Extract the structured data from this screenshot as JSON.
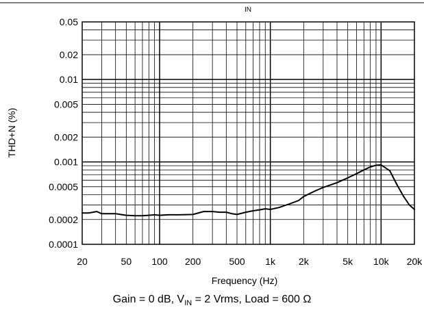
{
  "chart_data": {
    "type": "line",
    "top_label": "IN",
    "xlabel": "Frequency (Hz)",
    "ylabel": "THD+N (%)",
    "x_scale": "log",
    "y_scale": "log",
    "xlim": [
      20,
      20000
    ],
    "ylim": [
      0.0001,
      0.05
    ],
    "grid": true,
    "x_ticks": [
      {
        "value": 20,
        "label": "20"
      },
      {
        "value": 50,
        "label": "50"
      },
      {
        "value": 100,
        "label": "100"
      },
      {
        "value": 200,
        "label": "200"
      },
      {
        "value": 500,
        "label": "500"
      },
      {
        "value": 1000,
        "label": "1k"
      },
      {
        "value": 2000,
        "label": "2k"
      },
      {
        "value": 5000,
        "label": "5k"
      },
      {
        "value": 10000,
        "label": "10k"
      },
      {
        "value": 20000,
        "label": "20k"
      }
    ],
    "y_ticks": [
      {
        "value": 0.05,
        "label": "0.05"
      },
      {
        "value": 0.02,
        "label": "0.02"
      },
      {
        "value": 0.01,
        "label": "0.01"
      },
      {
        "value": 0.005,
        "label": "0.005"
      },
      {
        "value": 0.002,
        "label": "0.002"
      },
      {
        "value": 0.001,
        "label": "0.001"
      },
      {
        "value": 0.0005,
        "label": "0.0005"
      },
      {
        "value": 0.0002,
        "label": "0.0002"
      },
      {
        "value": 0.0001,
        "label": "0.0001"
      }
    ],
    "series": [
      {
        "x": [
          20,
          23,
          25,
          27,
          30,
          35,
          40,
          50,
          60,
          70,
          80,
          90,
          100,
          120,
          150,
          200,
          250,
          300,
          350,
          400,
          450,
          500,
          600,
          700,
          800,
          900,
          1000,
          1200,
          1500,
          1800,
          2000,
          2500,
          3000,
          4000,
          5000,
          6000,
          7000,
          8000,
          9000,
          10000,
          12000,
          14000,
          16000,
          18000,
          20000
        ],
        "y": [
          0.00024,
          0.00024,
          0.000245,
          0.00025,
          0.000235,
          0.000235,
          0.000235,
          0.000225,
          0.000222,
          0.000222,
          0.000225,
          0.000228,
          0.000225,
          0.000228,
          0.000228,
          0.00023,
          0.00025,
          0.00025,
          0.000245,
          0.000245,
          0.000235,
          0.00023,
          0.000245,
          0.000255,
          0.000262,
          0.00027,
          0.000265,
          0.00028,
          0.00031,
          0.00034,
          0.00038,
          0.00044,
          0.00049,
          0.00056,
          0.00064,
          0.00072,
          0.0008,
          0.00087,
          0.00091,
          0.00092,
          0.00078,
          0.00052,
          0.00038,
          0.0003,
          0.000265
        ]
      }
    ],
    "caption": {
      "prefix": "Gain = 0 dB, V",
      "sub": "IN",
      "suffix": " = 2 Vrms, Load = 600 Ω"
    }
  }
}
